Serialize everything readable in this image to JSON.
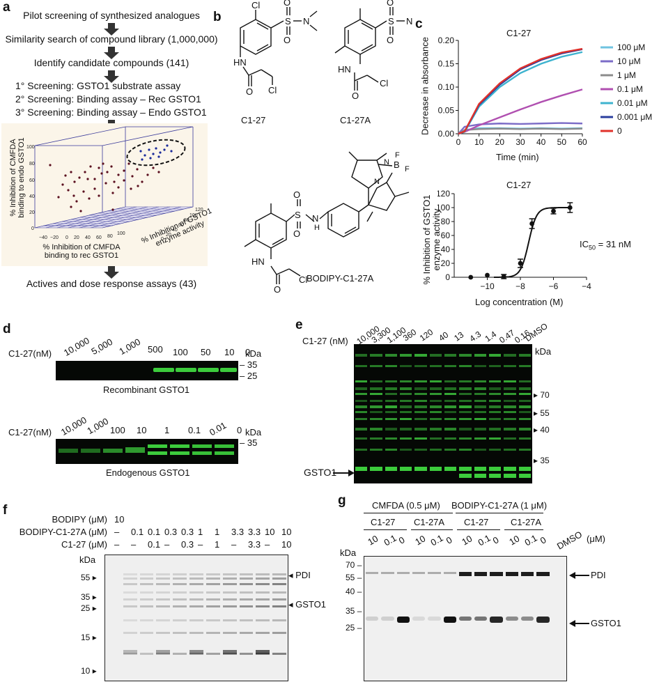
{
  "panel_a": {
    "label": "a",
    "steps": [
      "Pilot screening of synthesized analogues",
      "Similarity search of compound library (1,000,000)",
      "Identify candidate compounds (141)",
      "1° Screening: GSTO1 substrate assay",
      "2° Screening: Binding assay – Rec GSTO1",
      "3° Screening: Binding assay – Endo GSTO1",
      "Actives and dose response assays (43)"
    ],
    "plot3d": {
      "zlabel_line1": "% Inhibition of CMFDA",
      "zlabel_line2": "binding to endo GSTO1",
      "xlabel_line1": "% Inhibition of CMFDA",
      "xlabel_line2": "binding to rec GSTO1",
      "ylabel_line1": "% Inhibition of GSTO1",
      "ylabel_line2": "enzyme activity",
      "z_ticks": [
        "100",
        "80",
        "60",
        "40",
        "20",
        "0"
      ],
      "x_ticks": [
        "−40",
        "−20",
        "0",
        "20",
        "40",
        "60",
        "80",
        "100"
      ],
      "y_ticks": [
        "120",
        "100",
        "80",
        "60",
        "40",
        "20",
        "0"
      ]
    }
  },
  "panel_b": {
    "label": "b",
    "names": [
      "C1-27",
      "C1-27A",
      "BODIPY-C1-27A"
    ],
    "atoms": {
      "Cl": "Cl",
      "S": "S",
      "N": "N",
      "O": "O",
      "H": "H",
      "B": "B",
      "F": "F"
    }
  },
  "panel_c": {
    "label": "c",
    "top_title": "C1-27",
    "bottom_title": "C1-27",
    "ic50_label": "IC",
    "ic50_sub": "50",
    "ic50_value": " = 31 nM",
    "top_ylabel": "Decrease in absorbance",
    "top_xlabel": "Time (min)",
    "bottom_ylabel_line1": "% Inhibition of GSTO1",
    "bottom_ylabel_line2": "enzyme activity",
    "bottom_xlabel": "Log concentration (M)"
  },
  "panel_d": {
    "label": "d",
    "row_label": "C1-27(nM)",
    "kda": "kDa",
    "rec_lanes": [
      "10,000",
      "5,000",
      "1,000",
      "500",
      "100",
      "50",
      "10",
      "0"
    ],
    "rec_markers": [
      "35",
      "25"
    ],
    "rec_caption": "Recombinant GSTO1",
    "endo_lanes": [
      "10,000",
      "1,000",
      "100",
      "10",
      "1",
      "0.1",
      "0.01",
      "0"
    ],
    "endo_markers": [
      "35"
    ],
    "endo_caption": "Endogenous GSTO1"
  },
  "panel_e": {
    "label": "e",
    "row_label": "C1-27 (nM)",
    "lanes": [
      "10,000",
      "3,300",
      "1,100",
      "360",
      "120",
      "40",
      "13",
      "4.3",
      "1.4",
      "0.47",
      "0.16",
      "DMSO"
    ],
    "kda": "kDa",
    "markers": [
      "70",
      "55",
      "40",
      "35"
    ],
    "band_label": "GSTO1"
  },
  "panel_f": {
    "label": "f",
    "rows": [
      {
        "label": "BODIPY (μM)",
        "values": [
          "10",
          "",
          "",
          "",
          "",
          "",
          "",
          "",
          "",
          "",
          ""
        ]
      },
      {
        "label": "BODIPY-C1-27A (μM)",
        "values": [
          "–",
          "0.1",
          "0.1",
          "0.3",
          "0.3",
          "1",
          "1",
          "3.3",
          "3.3",
          "10",
          "10"
        ]
      },
      {
        "label": "C1-27 (μM)",
        "values": [
          "–",
          "–",
          "0.1",
          "–",
          "0.3",
          "–",
          "1",
          "–",
          "3.3",
          "–",
          "10"
        ]
      }
    ],
    "kda": "kDa",
    "markers": [
      "55",
      "35",
      "25",
      "15",
      "10"
    ],
    "pdi_label": "PDI",
    "gsto1_label": "GSTO1"
  },
  "panel_g": {
    "label": "g",
    "group1": "CMFDA (0.5 μM)",
    "group2": "BODIPY-C1-27A (1 μM)",
    "sub_groups": [
      "C1-27",
      "C1-27A",
      "C1-27",
      "C1-27A"
    ],
    "lanes": [
      "10",
      "0.1",
      "0",
      "10",
      "0.1",
      "0",
      "10",
      "0.1",
      "0",
      "10",
      "0.1",
      "0",
      "DMSO"
    ],
    "unit": "(μM)",
    "kda": "kDa",
    "markers": [
      "70",
      "55",
      "40",
      "35",
      "25"
    ],
    "pdi_label": "PDI",
    "gsto1_label": "GSTO1"
  },
  "chart_data": [
    {
      "type": "line",
      "title": "C1-27",
      "xlabel": "Time (min)",
      "ylabel": "Decrease in absorbance",
      "xlim": [
        0,
        60
      ],
      "ylim": [
        0,
        0.2
      ],
      "x_ticks": [
        0,
        10,
        20,
        30,
        40,
        50,
        60
      ],
      "y_ticks": [
        0.0,
        0.05,
        0.1,
        0.15,
        0.2
      ],
      "legend_position": "right",
      "x": [
        0,
        3,
        10,
        20,
        30,
        40,
        50,
        60
      ],
      "series": [
        {
          "name": "100 μM",
          "color": "#6fc3e0",
          "values": [
            0,
            0.008,
            0.012,
            0.012,
            0.011,
            0.012,
            0.011,
            0.012
          ]
        },
        {
          "name": "10 μM",
          "color": "#7b6cc7",
          "values": [
            0,
            0.015,
            0.02,
            0.022,
            0.021,
            0.022,
            0.023,
            0.022
          ]
        },
        {
          "name": "1 μM",
          "color": "#8c8c8c",
          "values": [
            0,
            0.008,
            0.01,
            0.011,
            0.01,
            0.011,
            0.01,
            0.011
          ]
        },
        {
          "name": "0.1 μM",
          "color": "#b04fb0",
          "values": [
            0,
            0.004,
            0.018,
            0.035,
            0.052,
            0.068,
            0.082,
            0.095
          ]
        },
        {
          "name": "0.01 μM",
          "color": "#3eb3cf",
          "values": [
            0,
            0.004,
            0.058,
            0.1,
            0.13,
            0.15,
            0.165,
            0.175
          ]
        },
        {
          "name": "0.001 μM",
          "color": "#2a3e9e",
          "values": [
            0,
            0.005,
            0.062,
            0.105,
            0.138,
            0.158,
            0.172,
            0.181
          ]
        },
        {
          "name": "0",
          "color": "#e0312b",
          "values": [
            0,
            0.005,
            0.064,
            0.108,
            0.14,
            0.16,
            0.174,
            0.182
          ]
        }
      ]
    },
    {
      "type": "scatter",
      "title": "C1-27",
      "xlabel": "Log concentration (M)",
      "ylabel": "% Inhibition of GSTO1 enzyme activity",
      "xlim": [
        -12,
        -4
      ],
      "ylim": [
        0,
        120
      ],
      "x_ticks": [
        -10,
        -8,
        -6,
        -4
      ],
      "y_ticks": [
        0,
        20,
        40,
        60,
        80,
        100,
        120
      ],
      "points": [
        {
          "x": -11,
          "y": 0,
          "err": 0
        },
        {
          "x": -10,
          "y": 3,
          "err": 0
        },
        {
          "x": -9,
          "y": 1,
          "err": 3
        },
        {
          "x": -8,
          "y": 20,
          "err": 6
        },
        {
          "x": -7.3,
          "y": 77,
          "err": 7
        },
        {
          "x": -6,
          "y": 95,
          "err": 4
        },
        {
          "x": -5,
          "y": 100,
          "err": 7
        }
      ],
      "fit": {
        "model": "sigmoid",
        "log_ic50": -7.5,
        "bottom": 0,
        "top": 100,
        "hill": 1.8
      },
      "annotation": "IC50 = 31 nM"
    }
  ]
}
